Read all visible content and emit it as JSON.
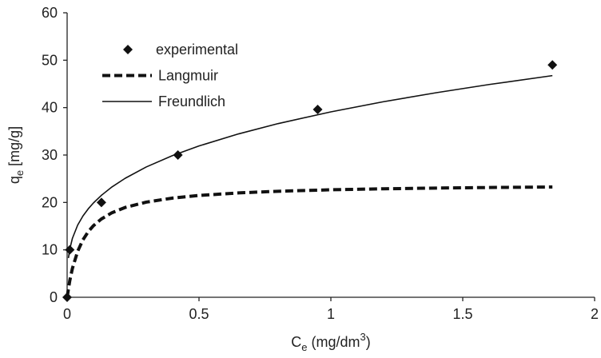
{
  "chart_data": {
    "type": "scatter",
    "x_label": [
      "C",
      "e",
      " (mg/dm",
      "3",
      ")"
    ],
    "y_label": [
      "q",
      "e",
      " [mg/g]"
    ],
    "xlim": [
      0,
      2
    ],
    "xticks": [
      0,
      0.5,
      1,
      1.5,
      2
    ],
    "ylim": [
      0,
      60
    ],
    "yticks": [
      0,
      10,
      20,
      30,
      40,
      50,
      60
    ],
    "grid": false,
    "legend": "upper-left",
    "series": [
      {
        "name": "experimental",
        "mode": "markers",
        "color": "#111111",
        "x": [
          0,
          0.01,
          0.13,
          0.42,
          0.95,
          1.84
        ],
        "values": [
          0,
          10,
          20,
          30,
          39.6,
          49
        ]
      },
      {
        "name": "Langmuir",
        "mode": "line",
        "dashed": true,
        "color": "#111111",
        "x": [
          0,
          0.01,
          0.02,
          0.04,
          0.06,
          0.08,
          0.1,
          0.13,
          0.17,
          0.22,
          0.3,
          0.4,
          0.5,
          0.65,
          0.8,
          1.0,
          1.2,
          1.4,
          1.6,
          1.84
        ],
        "values": [
          0,
          3.49,
          6.09,
          9.71,
          12.12,
          13.83,
          15.11,
          16.52,
          17.83,
          18.94,
          20.07,
          20.92,
          21.47,
          22.01,
          22.36,
          22.67,
          22.88,
          23.03,
          23.15,
          23.26
        ]
      },
      {
        "name": "Freundlich",
        "mode": "line",
        "dashed": false,
        "color": "#111111",
        "x": [
          0.005,
          0.01,
          0.02,
          0.04,
          0.06,
          0.08,
          0.1,
          0.13,
          0.17,
          0.22,
          0.3,
          0.4,
          0.5,
          0.65,
          0.8,
          1.0,
          1.2,
          1.4,
          1.6,
          1.84
        ],
        "values": [
          8.28,
          10.14,
          12.43,
          15.23,
          17.15,
          18.65,
          19.91,
          21.5,
          23.27,
          25.09,
          27.48,
          29.89,
          31.91,
          34.46,
          36.63,
          39.1,
          41.25,
          43.15,
          44.87,
          46.75
        ]
      }
    ]
  }
}
